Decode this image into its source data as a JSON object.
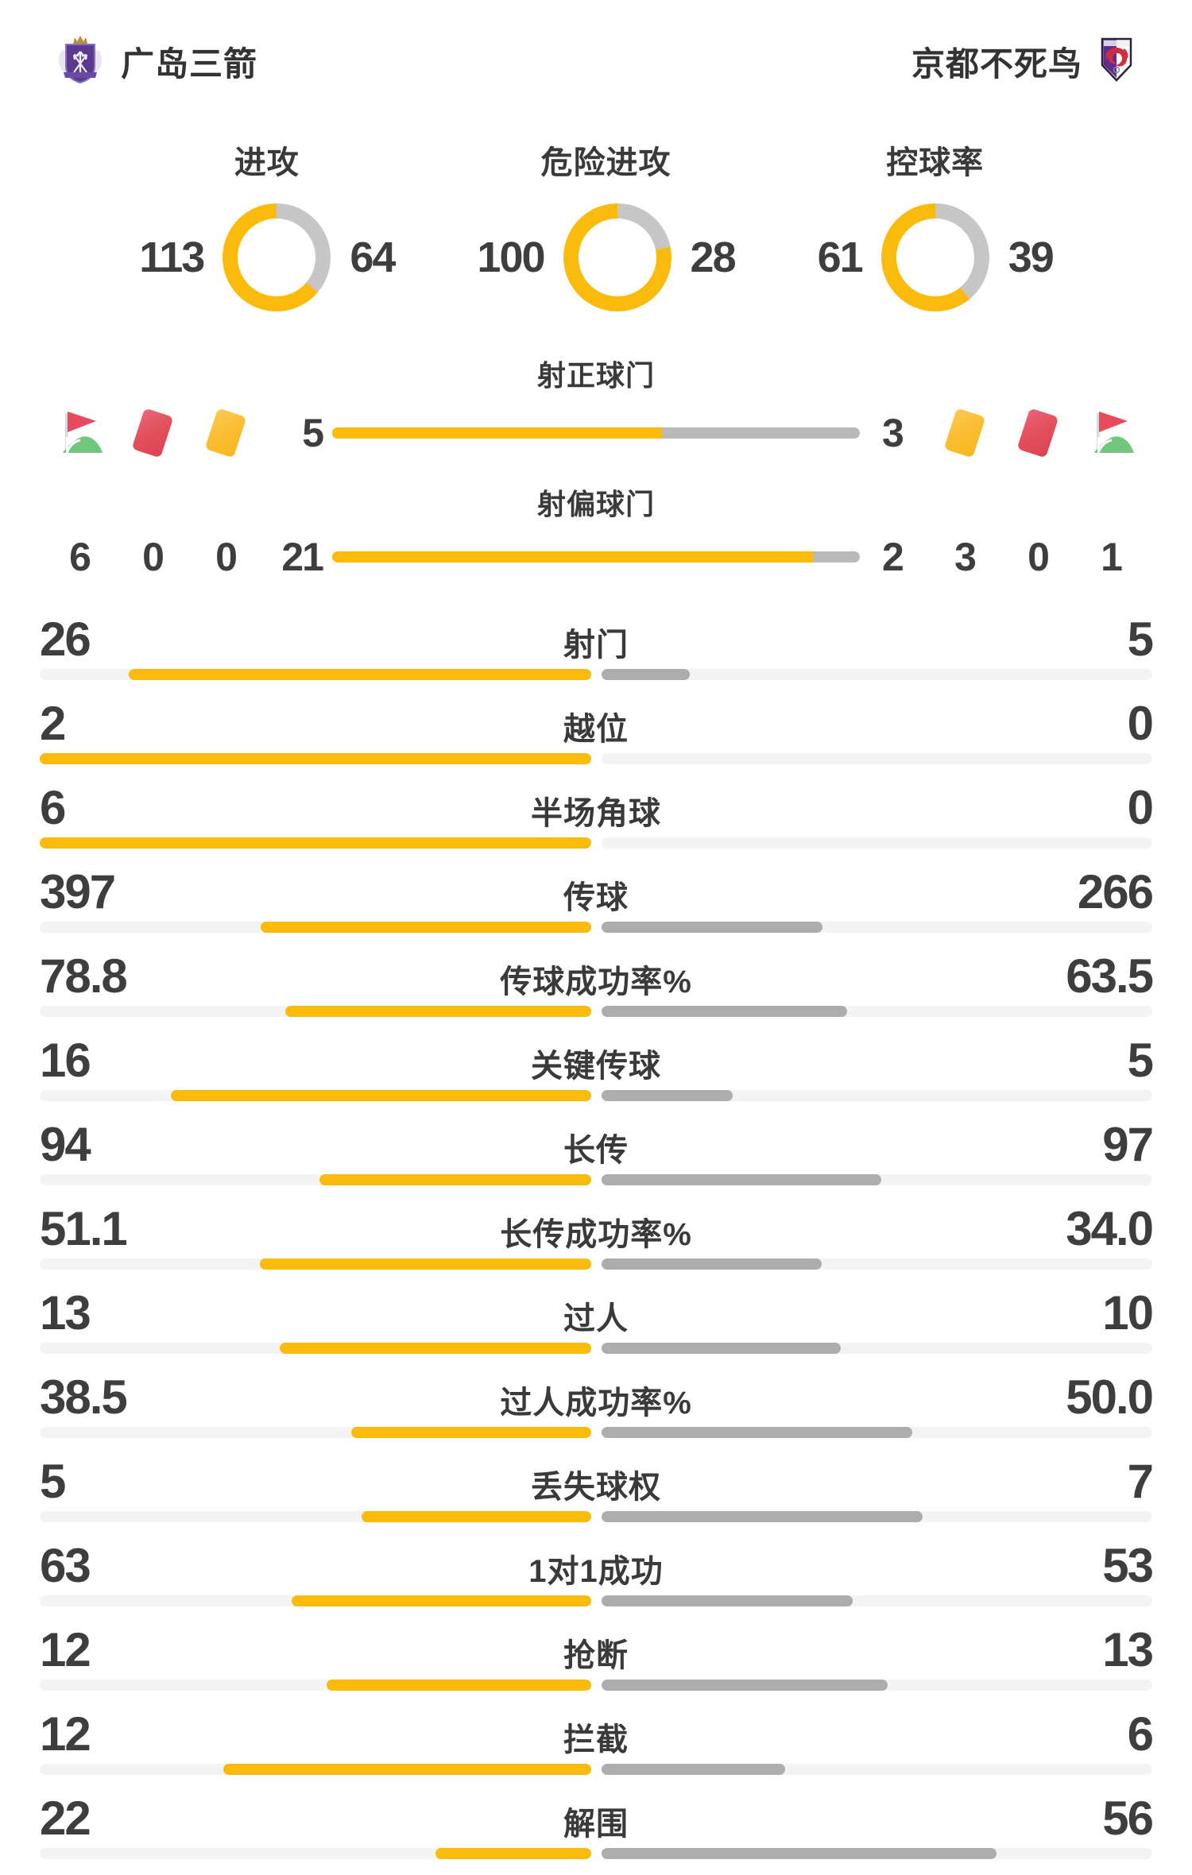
{
  "colors": {
    "accent_yellow": "#FBBB0C",
    "donut_gray": "#C6C6C6",
    "away_bar_gray": "#ADADAD",
    "bar_track": "#F4F4F4",
    "text_dark": "#3D3D3D",
    "red_card": "#E2505C",
    "yellow_card": "#FBBE33",
    "flag_red": "#E8495C",
    "flag_green": "#72C67E",
    "home_logo_purple": "#5B3B8E",
    "away_logo_purple": "#5F2D91",
    "away_logo_red": "#CE2F3E"
  },
  "header": {
    "home_team": "广岛三箭",
    "away_team": "京都不死鸟"
  },
  "donuts": [
    {
      "title": "进攻",
      "home": 113,
      "away": 64
    },
    {
      "title": "危险进攻",
      "home": 100,
      "away": 28
    },
    {
      "title": "控球率",
      "home": 61,
      "away": 39
    }
  ],
  "shooting": {
    "sections": [
      {
        "title": "射正球门",
        "home": 5,
        "away": 3
      },
      {
        "title": "射偏球门",
        "home": 21,
        "away": 2
      }
    ],
    "badges": {
      "home": [
        {
          "icon": "corner-flag",
          "count": "6"
        },
        {
          "icon": "red-card",
          "count": "0"
        },
        {
          "icon": "yellow-card",
          "count": "0"
        }
      ],
      "away": [
        {
          "icon": "yellow-card",
          "count": "3"
        },
        {
          "icon": "red-card",
          "count": "0"
        },
        {
          "icon": "corner-flag",
          "count": "1"
        }
      ]
    }
  },
  "stats": {
    "rows": [
      {
        "label": "射门",
        "home": "26",
        "away": "5"
      },
      {
        "label": "越位",
        "home": "2",
        "away": "0"
      },
      {
        "label": "半场角球",
        "home": "6",
        "away": "0"
      },
      {
        "label": "传球",
        "home": "397",
        "away": "266"
      },
      {
        "label": "传球成功率%",
        "home": "78.8",
        "away": "63.5"
      },
      {
        "label": "关键传球",
        "home": "16",
        "away": "5"
      },
      {
        "label": "长传",
        "home": "94",
        "away": "97"
      },
      {
        "label": "长传成功率%",
        "home": "51.1",
        "away": "34.0"
      },
      {
        "label": "过人",
        "home": "13",
        "away": "10"
      },
      {
        "label": "过人成功率%",
        "home": "38.5",
        "away": "50.0"
      },
      {
        "label": "丢失球权",
        "home": "5",
        "away": "7"
      },
      {
        "label": "1对1成功",
        "home": "63",
        "away": "53"
      },
      {
        "label": "抢断",
        "home": "12",
        "away": "13"
      },
      {
        "label": "拦截",
        "home": "12",
        "away": "6"
      },
      {
        "label": "解围",
        "home": "22",
        "away": "56"
      }
    ]
  }
}
